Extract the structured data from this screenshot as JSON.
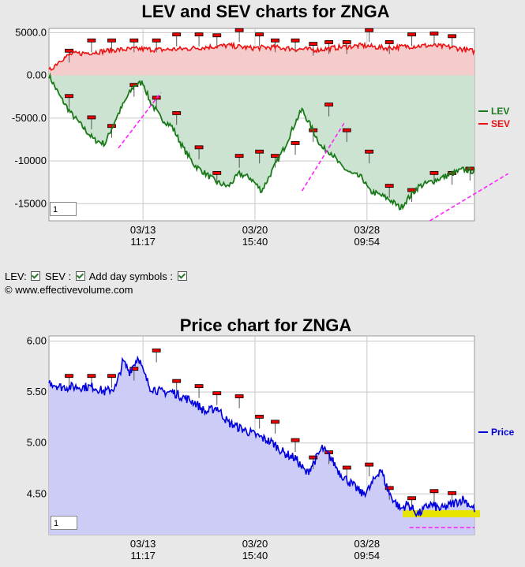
{
  "controls": {
    "lev_label": "LEV:",
    "sev_label": "SEV :",
    "day_symbols_label": "Add day symbols :",
    "copyright": "© www.effectivevolume.com"
  },
  "colors": {
    "lev": "#1a7a1a",
    "sev": "#ee1111",
    "price": "#0000dd",
    "lev_fill": "#cde3d2",
    "sev_fill": "#f4cccc",
    "price_fill": "#ccccf7",
    "trend": "#ff22ff",
    "highlight": "#e7e400"
  },
  "chart_data": [
    {
      "type": "line",
      "title": "LEV and SEV charts for ZNGA",
      "zoom_value": "1",
      "xlabel": "",
      "ylabel": "",
      "ylim": [
        -17000,
        5500
      ],
      "yticks": [
        "5000.0",
        "0.00",
        "-5000.0",
        "-10000",
        "-15000"
      ],
      "ytick_values": [
        5000,
        0,
        -5000,
        -10000,
        -15000
      ],
      "xticks": [
        {
          "date": "03/13",
          "time": "11:17",
          "x": 42
        },
        {
          "date": "03/20",
          "time": "15:40",
          "x": 92
        },
        {
          "date": "03/28",
          "time": "09:54",
          "x": 142
        }
      ],
      "xlim": [
        0,
        190
      ],
      "legend": "right",
      "series": [
        {
          "name": "LEV",
          "color": "#1a7a1a",
          "x": [
            0,
            5,
            10,
            15,
            20,
            25,
            30,
            35,
            38,
            42,
            45,
            50,
            55,
            60,
            65,
            70,
            75,
            80,
            85,
            90,
            95,
            100,
            105,
            110,
            113,
            118,
            122,
            126,
            130,
            135,
            140,
            143,
            148,
            152,
            157,
            160,
            165,
            170,
            175,
            180,
            185,
            190
          ],
          "values": [
            0,
            -2500,
            -4500,
            -6000,
            -7500,
            -8000,
            -5000,
            -2500,
            -1200,
            -800,
            -3000,
            -5000,
            -6000,
            -8500,
            -10500,
            -11500,
            -12500,
            -13000,
            -11500,
            -12000,
            -13500,
            -11000,
            -8500,
            -5500,
            -4000,
            -6500,
            -8500,
            -9000,
            -10500,
            -11500,
            -12000,
            -13500,
            -14000,
            -14500,
            -15500,
            -14500,
            -13000,
            -12500,
            -12000,
            -11500,
            -11000,
            -11200
          ]
        },
        {
          "name": "SEV",
          "color": "#ee1111",
          "x": [
            0,
            5,
            10,
            20,
            30,
            40,
            50,
            60,
            70,
            80,
            90,
            100,
            110,
            120,
            130,
            140,
            150,
            160,
            170,
            180,
            190
          ],
          "values": [
            500,
            1800,
            2500,
            2700,
            3000,
            3100,
            3000,
            3100,
            3300,
            3500,
            3200,
            3300,
            3100,
            3000,
            3300,
            3500,
            3200,
            3400,
            3500,
            3300,
            2800
          ]
        }
      ],
      "trend_lines": [
        {
          "x": [
            31,
            50
          ],
          "values": [
            -8500,
            -2000
          ]
        },
        {
          "x": [
            113,
            132
          ],
          "values": [
            -13500,
            -5500
          ]
        },
        {
          "x": [
            170,
            205
          ],
          "values": [
            -17000,
            -11500
          ]
        }
      ],
      "day_symbols": [
        {
          "x": 9,
          "value": -2500
        },
        {
          "x": 19,
          "value": -5000
        },
        {
          "x": 28,
          "value": -6000
        },
        {
          "x": 38,
          "value": -1200
        },
        {
          "x": 48,
          "value": -2700
        },
        {
          "x": 57,
          "value": -4500
        },
        {
          "x": 67,
          "value": -8500
        },
        {
          "x": 75,
          "value": -11500
        },
        {
          "x": 85,
          "value": -9500
        },
        {
          "x": 94,
          "value": -9000
        },
        {
          "x": 101,
          "value": -9500
        },
        {
          "x": 110,
          "value": -8000
        },
        {
          "x": 118,
          "value": -6500
        },
        {
          "x": 125,
          "value": -3500
        },
        {
          "x": 133,
          "value": -6500
        },
        {
          "x": 143,
          "value": -9000
        },
        {
          "x": 152,
          "value": -13000
        },
        {
          "x": 162,
          "value": -13500
        },
        {
          "x": 172,
          "value": -11500
        },
        {
          "x": 180,
          "value": -11500
        },
        {
          "x": 188,
          "value": -11000
        }
      ],
      "sev_symbols": [
        {
          "x": 9,
          "value": 2800
        },
        {
          "x": 19,
          "value": 4000
        },
        {
          "x": 28,
          "value": 4000
        },
        {
          "x": 38,
          "value": 4000
        },
        {
          "x": 48,
          "value": 4000
        },
        {
          "x": 57,
          "value": 4700
        },
        {
          "x": 67,
          "value": 4700
        },
        {
          "x": 75,
          "value": 4600
        },
        {
          "x": 85,
          "value": 5200
        },
        {
          "x": 94,
          "value": 4700
        },
        {
          "x": 101,
          "value": 4000
        },
        {
          "x": 110,
          "value": 4000
        },
        {
          "x": 118,
          "value": 3600
        },
        {
          "x": 125,
          "value": 3800
        },
        {
          "x": 133,
          "value": 3800
        },
        {
          "x": 143,
          "value": 5200
        },
        {
          "x": 152,
          "value": 3800
        },
        {
          "x": 162,
          "value": 4700
        },
        {
          "x": 172,
          "value": 4800
        },
        {
          "x": 180,
          "value": 4500
        }
      ]
    },
    {
      "type": "area",
      "title": "Price chart for ZNGA",
      "zoom_value": "1",
      "xlabel": "",
      "ylabel": "",
      "ylim": [
        4.1,
        6.05
      ],
      "yticks": [
        "6.00",
        "5.50",
        "5.00",
        "4.50"
      ],
      "ytick_values": [
        6.0,
        5.5,
        5.0,
        4.5
      ],
      "xticks": [
        {
          "date": "03/13",
          "time": "11:17",
          "x": 42
        },
        {
          "date": "03/20",
          "time": "15:40",
          "x": 92
        },
        {
          "date": "03/28",
          "time": "09:54",
          "x": 142
        }
      ],
      "xlim": [
        0,
        190
      ],
      "legend": "right",
      "series": [
        {
          "name": "Price",
          "color": "#0000dd",
          "x": [
            0,
            5,
            10,
            15,
            20,
            25,
            30,
            33,
            36,
            40,
            42,
            45,
            50,
            55,
            60,
            65,
            70,
            75,
            80,
            85,
            90,
            95,
            100,
            105,
            110,
            115,
            118,
            122,
            126,
            130,
            135,
            140,
            143,
            148,
            152,
            157,
            160,
            165,
            170,
            175,
            180,
            185,
            190
          ],
          "values": [
            5.6,
            5.55,
            5.55,
            5.55,
            5.55,
            5.5,
            5.55,
            5.8,
            5.7,
            5.85,
            5.7,
            5.55,
            5.5,
            5.5,
            5.45,
            5.4,
            5.3,
            5.35,
            5.2,
            5.15,
            5.1,
            5.05,
            5.0,
            4.9,
            4.85,
            4.7,
            4.8,
            4.95,
            4.85,
            4.7,
            4.6,
            4.5,
            4.55,
            4.75,
            4.5,
            4.35,
            4.4,
            4.3,
            4.4,
            4.35,
            4.4,
            4.45,
            4.35
          ]
        }
      ],
      "highlight_band": {
        "x": [
          158,
          205
        ],
        "values": [
          4.27,
          4.34
        ]
      },
      "support_line": {
        "x": [
          161,
          190
        ],
        "value": 4.17
      },
      "day_symbols": [
        {
          "x": 9,
          "value": 5.65
        },
        {
          "x": 19,
          "value": 5.65
        },
        {
          "x": 28,
          "value": 5.65
        },
        {
          "x": 38,
          "value": 5.72
        },
        {
          "x": 48,
          "value": 5.9
        },
        {
          "x": 57,
          "value": 5.6
        },
        {
          "x": 67,
          "value": 5.55
        },
        {
          "x": 75,
          "value": 5.48
        },
        {
          "x": 85,
          "value": 5.45
        },
        {
          "x": 94,
          "value": 5.25
        },
        {
          "x": 101,
          "value": 5.2
        },
        {
          "x": 110,
          "value": 5.02
        },
        {
          "x": 118,
          "value": 4.85
        },
        {
          "x": 125,
          "value": 4.9
        },
        {
          "x": 133,
          "value": 4.75
        },
        {
          "x": 143,
          "value": 4.78
        },
        {
          "x": 152,
          "value": 4.55
        },
        {
          "x": 162,
          "value": 4.45
        },
        {
          "x": 172,
          "value": 4.52
        },
        {
          "x": 180,
          "value": 4.5
        }
      ]
    }
  ]
}
